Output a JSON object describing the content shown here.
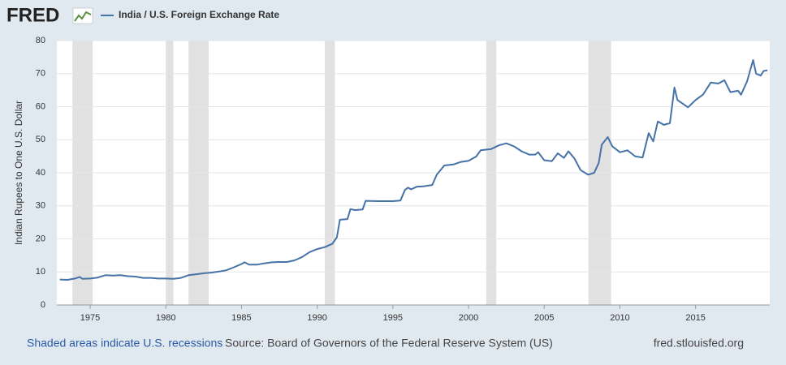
{
  "logo": "FRED",
  "chart_data": {
    "type": "line",
    "y_label": "Indian Rupees to One U.S. Dollar",
    "series": [
      {
        "name": "India / U.S. Foreign Exchange Rate",
        "color": "#4572a7",
        "values": [
          7.7,
          7.6,
          8.0,
          8.5,
          7.9,
          8.0,
          8.3,
          9.0,
          8.9,
          9.0,
          8.7,
          8.6,
          8.2,
          8.2,
          8.0,
          8.0,
          7.9,
          8.2,
          9.0,
          9.3,
          9.6,
          9.8,
          10.1,
          10.5,
          11.4,
          12.4,
          12.9,
          12.2,
          12.2,
          12.6,
          12.9,
          13.0,
          13.0,
          13.5,
          14.5,
          16.0,
          16.9,
          17.5,
          18.5,
          20.5,
          25.8,
          26.0,
          29.0,
          28.7,
          28.9,
          31.5,
          31.4,
          31.4,
          31.6,
          34.8,
          35.5,
          35.0,
          35.8,
          35.9,
          36.3,
          39.4,
          42.2,
          42.5,
          43.3,
          43.6,
          44.9,
          46.8,
          47.2,
          48.3,
          48.9,
          48.0,
          46.5,
          45.5,
          45.5,
          46.2,
          43.8,
          43.5,
          45.9,
          44.5,
          46.5,
          44.3,
          40.8,
          39.4,
          40.0,
          43.0,
          48.5,
          50.8,
          48.0,
          46.2,
          46.8,
          45.0,
          44.6,
          52.0,
          49.5,
          55.5,
          54.5,
          55.0,
          65.8,
          62.0,
          59.8,
          62.0,
          63.7,
          67.3,
          67.0,
          68.0,
          64.4,
          64.8,
          63.6,
          67.6,
          74.1,
          70.0,
          69.4,
          70.8,
          71.0
        ]
      }
    ],
    "x": [
      1973.0,
      1973.5,
      1974.0,
      1974.3,
      1974.5,
      1975.0,
      1975.5,
      1976.0,
      1976.5,
      1977.0,
      1977.5,
      1978.0,
      1978.5,
      1979.0,
      1979.5,
      1980.0,
      1980.5,
      1981.0,
      1981.5,
      1982.0,
      1982.5,
      1983.0,
      1983.5,
      1984.0,
      1984.5,
      1985.0,
      1985.2,
      1985.5,
      1986.0,
      1986.5,
      1987.0,
      1987.5,
      1988.0,
      1988.5,
      1989.0,
      1989.5,
      1990.0,
      1990.5,
      1991.0,
      1991.3,
      1991.5,
      1992.0,
      1992.2,
      1992.5,
      1993.0,
      1993.2,
      1994.0,
      1995.0,
      1995.5,
      1995.8,
      1996.0,
      1996.2,
      1996.6,
      1997.0,
      1997.6,
      1997.9,
      1998.4,
      1999.0,
      1999.5,
      2000.0,
      2000.5,
      2000.8,
      2001.5,
      2002.0,
      2002.5,
      2003.0,
      2003.5,
      2004.0,
      2004.4,
      2004.6,
      2005.0,
      2005.5,
      2005.9,
      2006.3,
      2006.6,
      2007.0,
      2007.4,
      2007.9,
      2008.3,
      2008.6,
      2008.8,
      2009.2,
      2009.5,
      2010.0,
      2010.5,
      2011.0,
      2011.5,
      2011.9,
      2012.2,
      2012.5,
      2012.9,
      2013.3,
      2013.6,
      2013.8,
      2014.5,
      2015.0,
      2015.5,
      2016.0,
      2016.5,
      2016.9,
      2017.3,
      2017.8,
      2018.0,
      2018.4,
      2018.8,
      2019.0,
      2019.3,
      2019.5,
      2019.75
    ],
    "recessions": [
      [
        1973.83,
        1975.17
      ],
      [
        1980.0,
        1980.5
      ],
      [
        1981.5,
        1982.83
      ],
      [
        1990.5,
        1991.17
      ],
      [
        2001.17,
        2001.83
      ],
      [
        2007.92,
        2009.42
      ]
    ],
    "xlim": [
      1972.8,
      2019.9
    ],
    "xticks": [
      1975,
      1980,
      1985,
      1990,
      1995,
      2000,
      2005,
      2010,
      2015
    ],
    "ylim": [
      0,
      80
    ],
    "yticks": [
      0,
      10,
      20,
      30,
      40,
      50,
      60,
      70,
      80
    ],
    "grid": true,
    "recession_color": "#e1e1e1",
    "footer": {
      "note": "Shaded areas indicate U.S. recessions",
      "source": "Source: Board of Governors of the Federal Reserve System (US)",
      "site": "fred.stlouisfed.org"
    }
  }
}
